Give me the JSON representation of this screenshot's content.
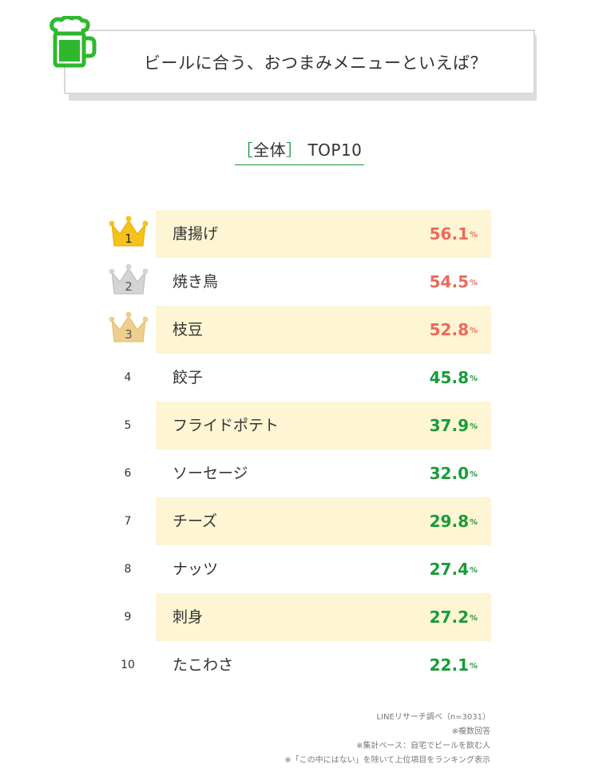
{
  "header": {
    "title": "ビールに合う、おつまみメニューといえば？"
  },
  "subtitle": {
    "open_bracket": "［",
    "scope": "全体",
    "close_bracket": "］",
    "rest": "TOP10"
  },
  "colors": {
    "top3_value": "#ec6a5a",
    "other_value": "#1a9b3a",
    "row_shade": "#fdf5d3",
    "gold": "#f4c21a",
    "silver": "#d4d4d4",
    "bronze": "#efcf8c"
  },
  "chart_data": {
    "type": "table",
    "title": "ビールに合う、おつまみメニューといえば？",
    "subtitle": "［全体］TOP10",
    "unit": "%",
    "rows": [
      {
        "rank": "1",
        "item": "唐揚げ",
        "value": "56.1"
      },
      {
        "rank": "2",
        "item": "焼き鳥",
        "value": "54.5"
      },
      {
        "rank": "3",
        "item": "枝豆",
        "value": "52.8"
      },
      {
        "rank": "4",
        "item": "餃子",
        "value": "45.8"
      },
      {
        "rank": "5",
        "item": "フライドポテト",
        "value": "37.9"
      },
      {
        "rank": "6",
        "item": "ソーセージ",
        "value": "32.0"
      },
      {
        "rank": "7",
        "item": "チーズ",
        "value": "29.8"
      },
      {
        "rank": "8",
        "item": "ナッツ",
        "value": "27.4"
      },
      {
        "rank": "9",
        "item": "刺身",
        "value": "27.2"
      },
      {
        "rank": "10",
        "item": "たこわさ",
        "value": "22.1"
      }
    ]
  },
  "notes": [
    "LINEリサーチ調べ（n=3031）",
    "※複数回答",
    "※集計ベース：自宅でビールを飲む人",
    "※「この中にはない」を除いて上位項目をランキング表示"
  ]
}
